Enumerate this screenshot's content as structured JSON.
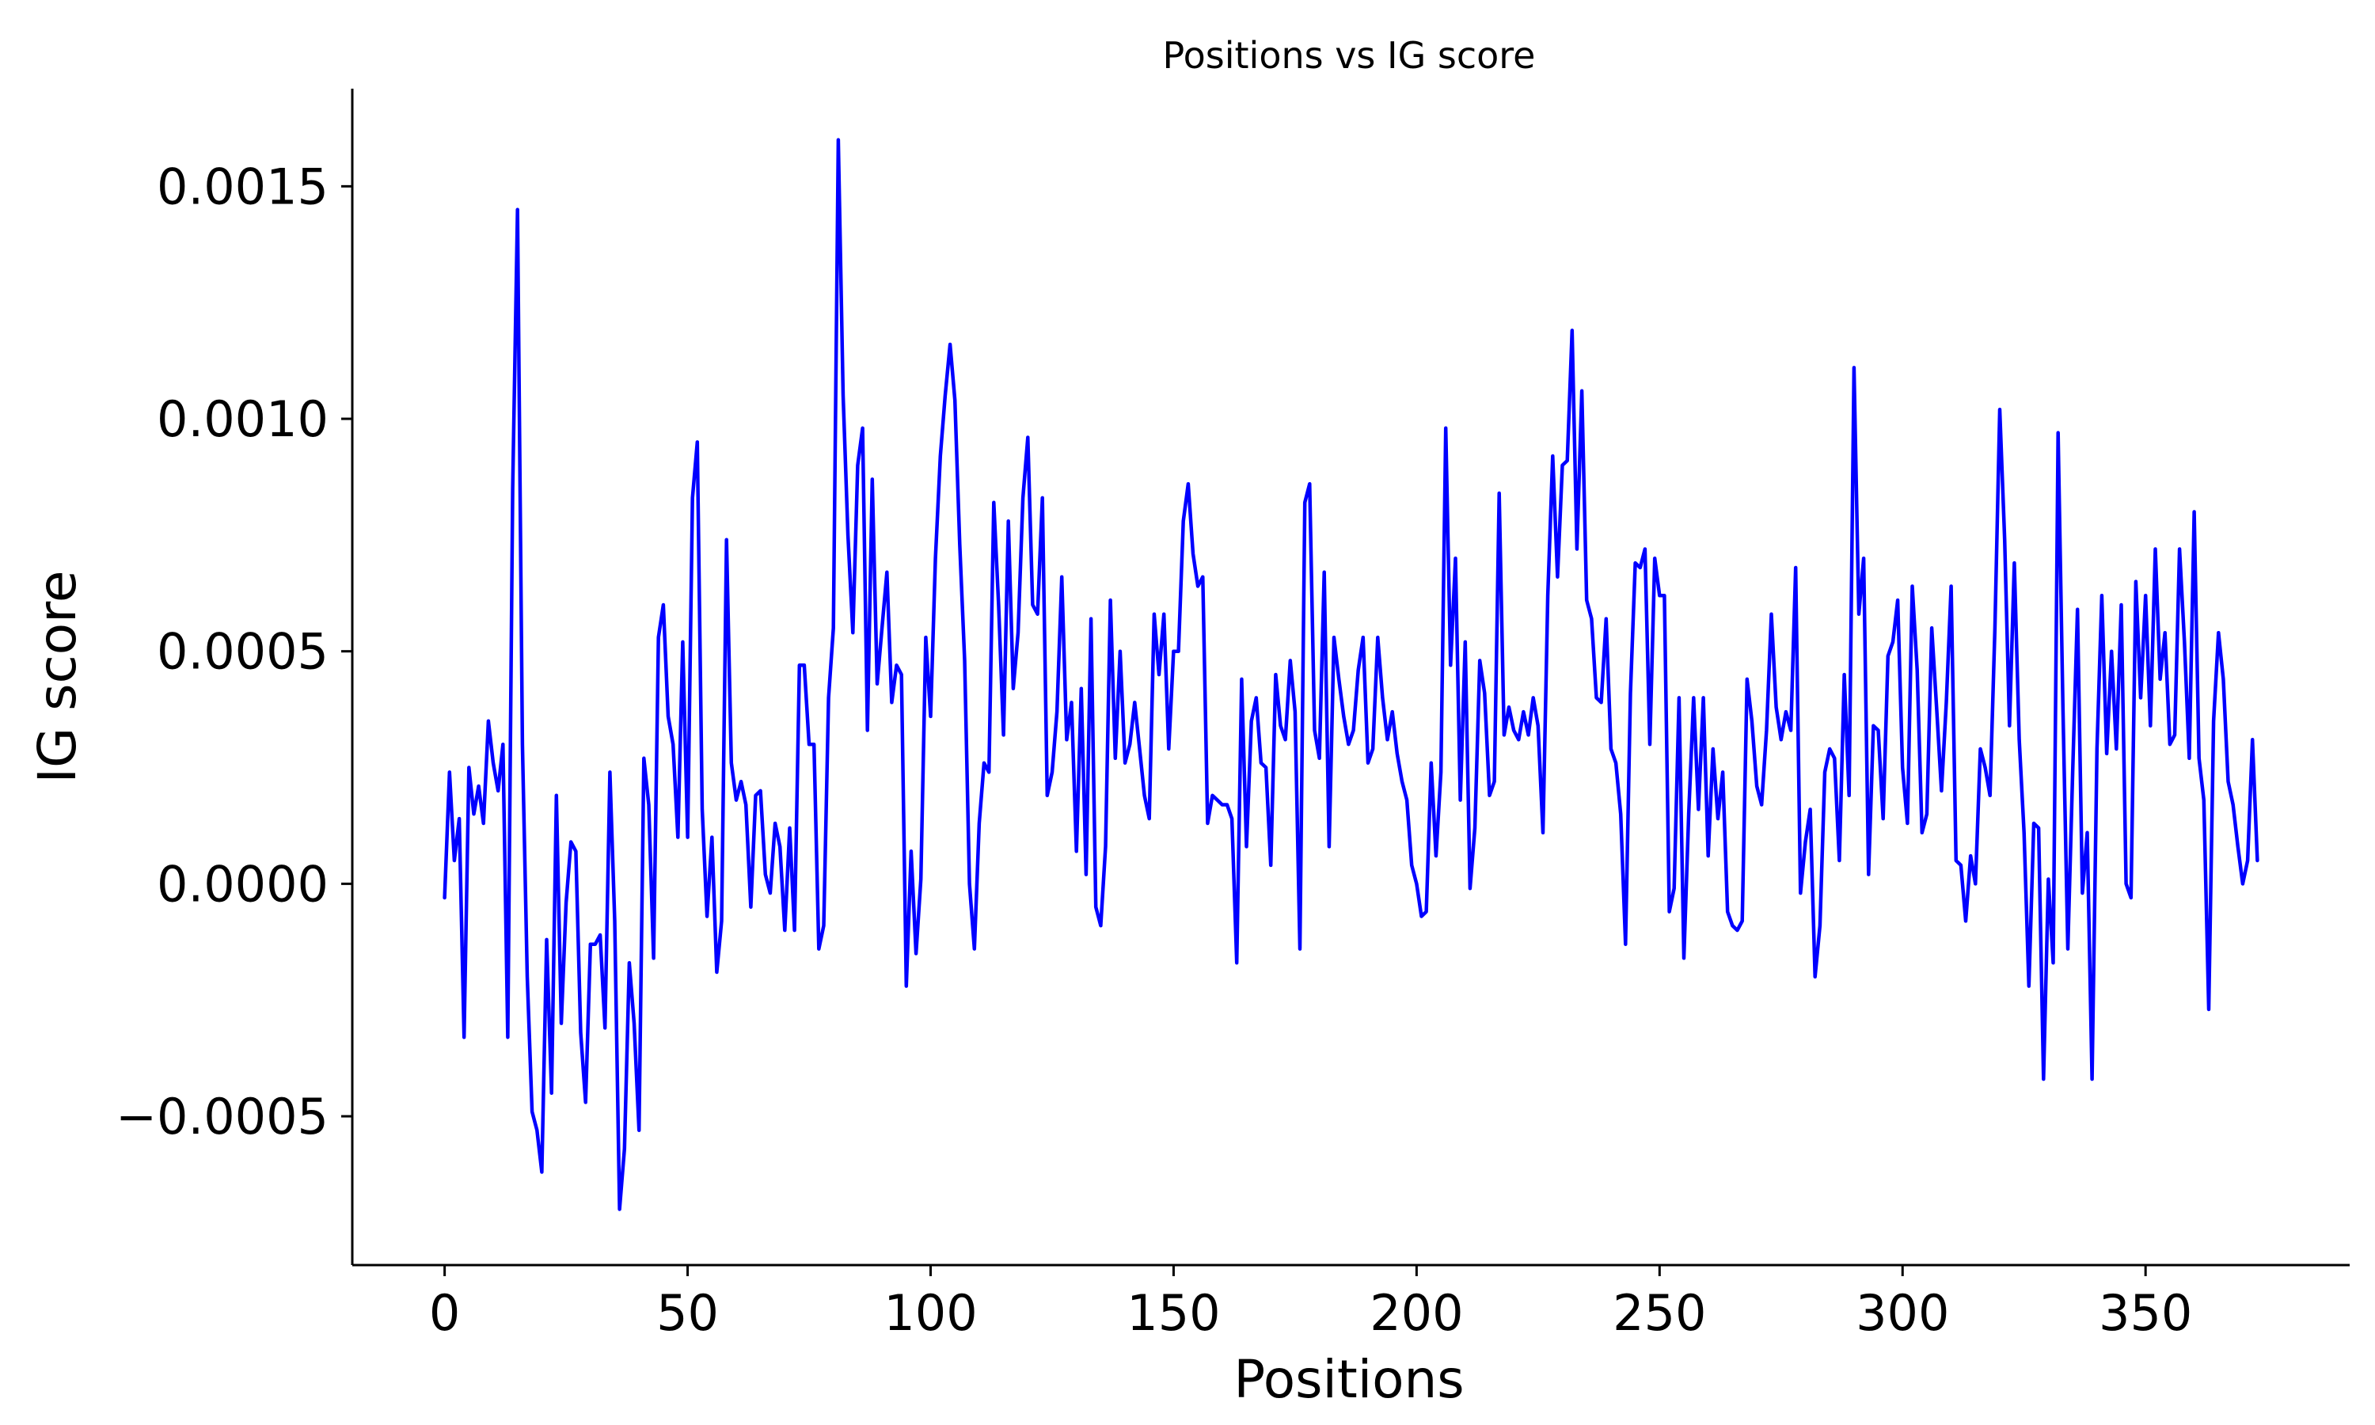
{
  "chart_data": {
    "type": "line",
    "title": "Positions vs IG score",
    "xlabel": "Positions",
    "ylabel": "IG score",
    "xlim": [
      -19,
      392
    ],
    "ylim": [
      -0.00082,
      0.00171
    ],
    "xticks": [
      0,
      50,
      100,
      150,
      200,
      250,
      300,
      350
    ],
    "xtick_labels": [
      "0",
      "50",
      "100",
      "150",
      "200",
      "250",
      "300",
      "350"
    ],
    "yticks": [
      -0.0005,
      0.0,
      0.0005,
      0.001,
      0.0015
    ],
    "ytick_labels": [
      "−0.0005",
      "0.0000",
      "0.0005",
      "0.0010",
      "0.0015"
    ],
    "grid": false,
    "legend": "none",
    "color": "#0000ff",
    "series": [
      {
        "x": [
          0,
          1,
          2,
          3,
          4,
          5,
          6,
          7,
          8,
          9,
          10,
          11,
          12,
          13,
          14,
          15,
          16,
          17,
          18,
          19,
          20,
          21,
          22,
          23,
          24,
          25,
          26,
          27,
          28,
          29,
          30,
          31,
          32,
          33,
          34,
          35,
          36,
          37,
          38,
          39,
          40,
          41,
          42,
          43,
          44,
          45,
          46,
          47,
          48,
          49,
          50,
          51,
          52,
          53,
          54,
          55,
          56,
          57,
          58,
          59,
          60,
          61,
          62,
          63,
          64,
          65,
          66,
          67,
          68,
          69,
          70,
          71,
          72,
          73,
          74,
          75,
          76,
          77,
          78,
          79,
          80,
          81,
          82,
          83,
          84,
          85,
          86,
          87,
          88,
          89,
          90,
          91,
          92,
          93,
          94,
          95,
          96,
          97,
          98,
          99,
          100,
          101,
          102,
          103,
          104,
          105,
          106,
          107,
          108,
          109,
          110,
          111,
          112,
          113,
          114,
          115,
          116,
          117,
          118,
          119,
          120,
          121,
          122,
          123,
          124,
          125,
          126,
          127,
          128,
          129,
          130,
          131,
          132,
          133,
          134,
          135,
          136,
          137,
          138,
          139,
          140,
          141,
          142,
          143,
          144,
          145,
          146,
          147,
          148,
          149,
          150,
          151,
          152,
          153,
          154,
          155,
          156,
          157,
          158,
          159,
          160,
          161,
          162,
          163,
          164,
          165,
          166,
          167,
          168,
          169,
          170,
          171,
          172,
          173,
          174,
          175,
          176,
          177,
          178,
          179,
          180,
          181,
          182,
          183,
          184,
          185,
          186,
          187,
          188,
          189,
          190,
          191,
          192,
          193,
          194,
          195,
          196,
          197,
          198,
          199,
          200,
          201,
          202,
          203,
          204,
          205,
          206,
          207,
          208,
          209,
          210,
          211,
          212,
          213,
          214,
          215,
          216,
          217,
          218,
          219,
          220,
          221,
          222,
          223,
          224,
          225,
          226,
          227,
          228,
          229,
          230,
          231,
          232,
          233,
          234,
          235,
          236,
          237,
          238,
          239,
          240,
          241,
          242,
          243,
          244,
          245,
          246,
          247,
          248,
          249,
          250,
          251,
          252,
          253,
          254,
          255,
          256,
          257,
          258,
          259,
          260,
          261,
          262,
          263,
          264,
          265,
          266,
          267,
          268,
          269,
          270,
          271,
          272,
          273,
          274,
          275,
          276,
          277,
          278,
          279,
          280,
          281,
          282,
          283,
          284,
          285,
          286,
          287,
          288,
          289,
          290,
          291,
          292,
          293,
          294,
          295,
          296,
          297,
          298,
          299,
          300,
          301,
          302,
          303,
          304,
          305,
          306,
          307,
          308,
          309,
          310,
          311,
          312,
          313,
          314,
          315,
          316,
          317,
          318,
          319,
          320,
          321,
          322,
          323,
          324,
          325,
          326,
          327,
          328,
          329,
          330,
          331,
          332,
          333,
          334,
          335,
          336,
          337,
          338,
          339,
          340,
          341,
          342,
          343,
          344,
          345,
          346,
          347,
          348,
          349,
          350,
          351,
          352,
          353,
          354,
          355,
          356,
          357,
          358,
          359,
          360,
          361,
          362,
          363,
          364,
          365,
          366,
          367,
          368,
          369,
          370,
          371,
          372,
          373
        ],
        "y": [
          -3e-05,
          0.00024,
          5e-05,
          0.00014,
          -0.00033,
          0.00025,
          0.00015,
          0.00021,
          0.00013,
          0.00035,
          0.00026,
          0.0002,
          0.0003,
          -0.00033,
          0.00085,
          0.00145,
          0.0003,
          -0.0002,
          -0.00049,
          -0.00053,
          -0.00062,
          -0.00012,
          -0.00045,
          0.00019,
          -0.0003,
          -4e-05,
          9e-05,
          7e-05,
          -0.00032,
          -0.00047,
          -0.00013,
          -0.00013,
          -0.00011,
          -0.00031,
          0.00024,
          -8e-05,
          -0.0007,
          -0.00057,
          -0.00017,
          -0.0003,
          -0.00053,
          0.00027,
          0.00017,
          -0.00016,
          0.00053,
          0.0006,
          0.00036,
          0.0003,
          0.0001,
          0.00052,
          0.0001,
          0.00083,
          0.00095,
          0.00016,
          -7e-05,
          0.0001,
          -0.00019,
          -8e-05,
          0.00074,
          0.00026,
          0.00018,
          0.00022,
          0.00017,
          -5e-05,
          0.00019,
          0.0002,
          2e-05,
          -2e-05,
          0.00013,
          8e-05,
          -0.0001,
          0.00012,
          -0.0001,
          0.00047,
          0.00047,
          0.0003,
          0.0003,
          -0.00014,
          -9e-05,
          0.0004,
          0.00055,
          0.0016,
          0.00105,
          0.00075,
          0.00054,
          0.0009,
          0.00098,
          0.00033,
          0.00087,
          0.00043,
          0.00055,
          0.00067,
          0.00039,
          0.00047,
          0.00045,
          -0.00022,
          7e-05,
          -0.00015,
          1e-05,
          0.00053,
          0.00036,
          0.0007,
          0.00092,
          0.00105,
          0.00116,
          0.00104,
          0.00073,
          0.00048,
          0.0,
          -0.00014,
          0.00013,
          0.00026,
          0.00024,
          0.00082,
          0.0006,
          0.00032,
          0.00078,
          0.00042,
          0.00054,
          0.00083,
          0.00096,
          0.0006,
          0.00058,
          0.00083,
          0.00019,
          0.00024,
          0.00037,
          0.00066,
          0.00031,
          0.00039,
          7e-05,
          0.00042,
          2e-05,
          0.00057,
          -5e-05,
          -9e-05,
          8e-05,
          0.00061,
          0.00027,
          0.0005,
          0.00026,
          0.0003,
          0.00039,
          0.00029,
          0.00019,
          0.00014,
          0.00058,
          0.00045,
          0.00058,
          0.00029,
          0.0005,
          0.0005,
          0.00078,
          0.00086,
          0.00071,
          0.00064,
          0.00066,
          0.00013,
          0.00019,
          0.00018,
          0.00017,
          0.00017,
          0.00014,
          -0.00017,
          0.00044,
          8e-05,
          0.00035,
          0.0004,
          0.00026,
          0.00025,
          4e-05,
          0.00045,
          0.00034,
          0.00031,
          0.00048,
          0.00037,
          -0.00014,
          0.00082,
          0.00086,
          0.00033,
          0.00027,
          0.00067,
          8e-05,
          0.00053,
          0.00044,
          0.00036,
          0.0003,
          0.00033,
          0.00046,
          0.00053,
          0.00026,
          0.00029,
          0.00053,
          0.0004,
          0.00031,
          0.00037,
          0.00028,
          0.00022,
          0.00018,
          4e-05,
          0.0,
          -7e-05,
          -6e-05,
          0.00026,
          6e-05,
          0.00024,
          0.00098,
          0.00047,
          0.0007,
          0.00018,
          0.00052,
          -1e-05,
          0.00012,
          0.00048,
          0.00041,
          0.00019,
          0.00022,
          0.00084,
          0.00032,
          0.00038,
          0.00033,
          0.00031,
          0.00037,
          0.00032,
          0.0004,
          0.00034,
          0.00011,
          0.00062,
          0.00092,
          0.00066,
          0.0009,
          0.00091,
          0.00119,
          0.00072,
          0.00106,
          0.00061,
          0.00057,
          0.0004,
          0.00039,
          0.00057,
          0.00029,
          0.00026,
          0.00015,
          -0.00013,
          0.00041,
          0.00069,
          0.00068,
          0.00072,
          0.0003,
          0.0007,
          0.00062,
          0.00062,
          -6e-05,
          -1e-05,
          0.0004,
          -0.00016,
          0.00015,
          0.0004,
          0.00016,
          0.0004,
          6e-05,
          0.00029,
          0.00014,
          0.00024,
          -6e-05,
          -9e-05,
          -0.0001,
          -8e-05,
          0.00044,
          0.00035,
          0.00021,
          0.00017,
          0.00033,
          0.00058,
          0.00038,
          0.00031,
          0.00037,
          0.00033,
          0.00068,
          -2e-05,
          9e-05,
          0.00016,
          -0.0002,
          -9e-05,
          0.00024,
          0.00029,
          0.00027,
          5e-05,
          0.00045,
          0.00019,
          0.00111,
          0.00058,
          0.0007,
          2e-05,
          0.00034,
          0.00033,
          0.00014,
          0.00049,
          0.00052,
          0.00061,
          0.00025,
          0.00013,
          0.00064,
          0.00046,
          0.00011,
          0.00015,
          0.00055,
          0.00038,
          0.0002,
          0.00039,
          0.00064,
          5e-05,
          4e-05,
          -8e-05,
          6e-05,
          0.0,
          0.00029,
          0.00025,
          0.00019,
          0.00055,
          0.00102,
          0.00074,
          0.00034,
          0.00069,
          0.00031,
          0.00011,
          -0.00022,
          0.00013,
          0.00012,
          -0.00042,
          1e-05,
          -0.00017,
          0.00097,
          0.00038,
          -0.00014,
          0.00024,
          0.00059,
          -2e-05,
          0.00011,
          -0.00042,
          0.00029,
          0.00062,
          0.00028,
          0.0005,
          0.00029,
          0.0006,
          0.0,
          -3e-05,
          0.00065,
          0.0004,
          0.00062,
          0.00034,
          0.00072,
          0.00044,
          0.00054,
          0.0003,
          0.00032,
          0.00072,
          0.00052,
          0.00027,
          0.0008,
          0.00027,
          0.00018,
          -0.00027,
          0.00035,
          0.00054,
          0.00044,
          0.00022,
          0.00017,
          8e-05,
          0.0,
          5e-05,
          0.00031,
          5e-05
        ]
      }
    ]
  }
}
